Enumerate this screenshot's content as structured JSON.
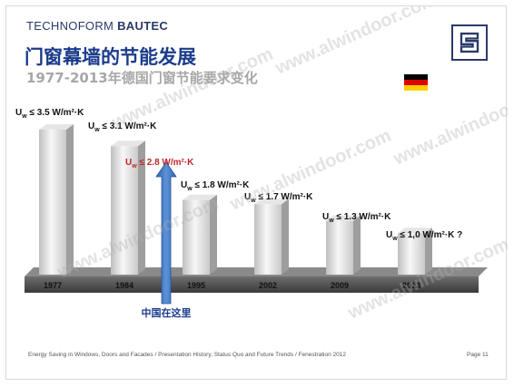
{
  "brand": {
    "name_light": "TECHNOFORM",
    "name_bold": "BAUTEC"
  },
  "title": "门窗幕墙的节能发展",
  "subtitle": "1977-2013年德国门窗节能要求变化",
  "flag": {
    "colors": [
      "#000000",
      "#dd0000",
      "#ffce00"
    ]
  },
  "arrow": {
    "label": "中国在这里",
    "color": "#3f78c4",
    "target_index": 2
  },
  "footer": "Energy Saving in Windows, Doors and Facades  / Presentation History, Status Quo and Future Trends / Fenestration 2012",
  "page": "Page 11",
  "watermark": "www.alwindoor.com",
  "chart_data": {
    "type": "bar",
    "categories": [
      "1977",
      "1984",
      "1995",
      "2002",
      "2009",
      "2013"
    ],
    "values": [
      3.5,
      3.1,
      1.8,
      1.7,
      1.3,
      1.0
    ],
    "ylim": [
      0,
      3.5
    ],
    "title": "",
    "xlabel": "",
    "ylabel": "",
    "annotations": [
      {
        "text": "≤ 3.5 W/m²·K",
        "color": "#111111"
      },
      {
        "text": "≤ 3.1 W/m²·K",
        "color": "#111111"
      },
      {
        "text": "≤ 1.8 W/m²·K",
        "color": "#111111"
      },
      {
        "text": "≤ 1.7 W/m²·K",
        "color": "#111111"
      },
      {
        "text": "≤ 1.3 W/m²·K",
        "color": "#111111"
      },
      {
        "text": "≤ 1,0 W/m²·K ?",
        "color": "#111111"
      }
    ],
    "highlight": {
      "text": "≤ 2.8 W/m²·K",
      "value": 2.8,
      "color": "#c0262b"
    }
  }
}
